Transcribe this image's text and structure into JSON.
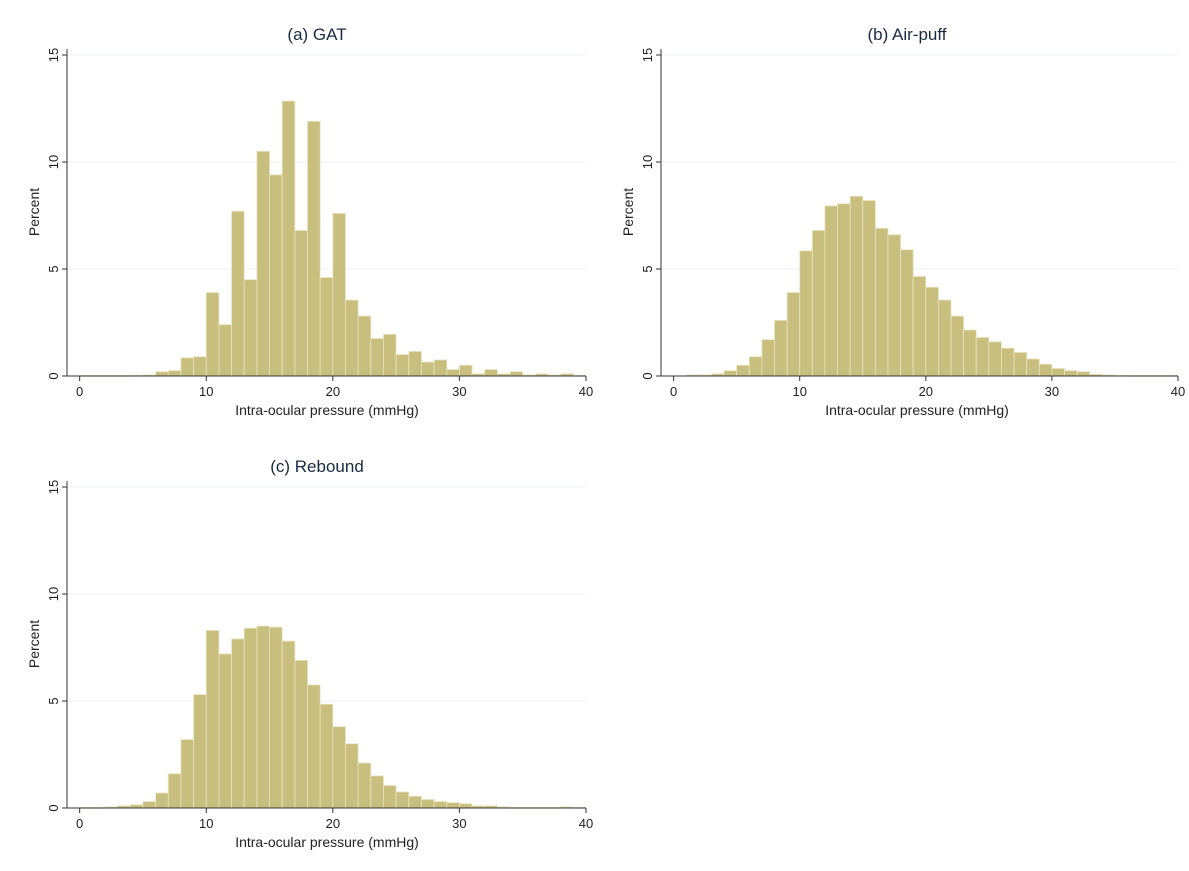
{
  "bar_color": "#c8bf7f",
  "bar_edge": "#e9e4c0",
  "grid_color": "#eef0f0",
  "axis_color": "#333333",
  "chart_data": [
    {
      "type": "bar",
      "title": "(a) GAT",
      "xlabel": "Intra-ocular pressure (mmHg)",
      "ylabel": "Percent",
      "xlim": [
        -1,
        40
      ],
      "ylim": [
        0,
        15
      ],
      "xticks": [
        "0",
        "10",
        "20",
        "30",
        "40"
      ],
      "yticks": [
        "0",
        "5",
        "10",
        "15"
      ],
      "grid": true,
      "x": [
        0,
        1,
        2,
        3,
        4,
        5,
        6,
        7,
        8,
        9,
        10,
        11,
        12,
        13,
        14,
        15,
        16,
        17,
        18,
        19,
        20,
        21,
        22,
        23,
        24,
        25,
        26,
        27,
        28,
        29,
        30,
        31,
        32,
        33,
        34,
        35,
        36,
        37,
        38,
        39
      ],
      "values": [
        0.02,
        0.02,
        0.02,
        0.02,
        0.03,
        0.05,
        0.2,
        0.25,
        0.85,
        0.9,
        3.9,
        2.4,
        7.7,
        4.5,
        10.5,
        9.4,
        12.85,
        6.8,
        11.9,
        4.6,
        7.6,
        3.55,
        2.8,
        1.75,
        1.95,
        1.0,
        1.15,
        0.65,
        0.75,
        0.3,
        0.5,
        0.1,
        0.3,
        0.1,
        0.2,
        0.05,
        0.1,
        0.05,
        0.1,
        0.02
      ]
    },
    {
      "type": "bar",
      "title": "(b) Air-puff",
      "xlabel": "Intra-ocular pressure (mmHg)",
      "ylabel": "Percent",
      "xlim": [
        -1,
        40
      ],
      "ylim": [
        0,
        15
      ],
      "xticks": [
        "0",
        "10",
        "20",
        "30",
        "40"
      ],
      "yticks": [
        "0",
        "5",
        "10",
        "15"
      ],
      "grid": true,
      "x": [
        1,
        2,
        3,
        4,
        5,
        6,
        7,
        8,
        9,
        10,
        11,
        12,
        13,
        14,
        15,
        16,
        17,
        18,
        19,
        20,
        21,
        22,
        23,
        24,
        25,
        26,
        27,
        28,
        29,
        30,
        31,
        32,
        33,
        34,
        35,
        36,
        37,
        38,
        39
      ],
      "values": [
        0.05,
        0.05,
        0.1,
        0.25,
        0.5,
        0.9,
        1.7,
        2.6,
        3.9,
        5.85,
        6.8,
        7.95,
        8.05,
        8.4,
        8.2,
        6.9,
        6.6,
        5.9,
        4.65,
        4.15,
        3.55,
        2.8,
        2.15,
        1.8,
        1.6,
        1.3,
        1.1,
        0.8,
        0.55,
        0.35,
        0.25,
        0.2,
        0.08,
        0.05,
        0.03,
        0.02,
        0.02,
        0.02,
        0.02
      ]
    },
    {
      "type": "bar",
      "title": "(c) Rebound",
      "xlabel": "Intra-ocular pressure (mmHg)",
      "ylabel": "Percent",
      "xlim": [
        -1,
        40
      ],
      "ylim": [
        0,
        15
      ],
      "xticks": [
        "0",
        "10",
        "20",
        "30",
        "40"
      ],
      "yticks": [
        "0",
        "5",
        "10",
        "15"
      ],
      "grid": true,
      "x": [
        0,
        1,
        2,
        3,
        4,
        5,
        6,
        7,
        8,
        9,
        10,
        11,
        12,
        13,
        14,
        15,
        16,
        17,
        18,
        19,
        20,
        21,
        22,
        23,
        24,
        25,
        26,
        27,
        28,
        29,
        30,
        31,
        32,
        33,
        34,
        35,
        36,
        37,
        38,
        39
      ],
      "values": [
        0.02,
        0.02,
        0.05,
        0.1,
        0.15,
        0.3,
        0.7,
        1.6,
        3.2,
        5.3,
        8.3,
        7.2,
        7.9,
        8.4,
        8.5,
        8.45,
        7.8,
        6.9,
        5.75,
        4.85,
        3.8,
        3.0,
        2.1,
        1.5,
        1.05,
        0.75,
        0.55,
        0.4,
        0.3,
        0.25,
        0.2,
        0.1,
        0.1,
        0.05,
        0.02,
        0.02,
        0.02,
        0.02,
        0.05,
        0.02
      ]
    }
  ]
}
